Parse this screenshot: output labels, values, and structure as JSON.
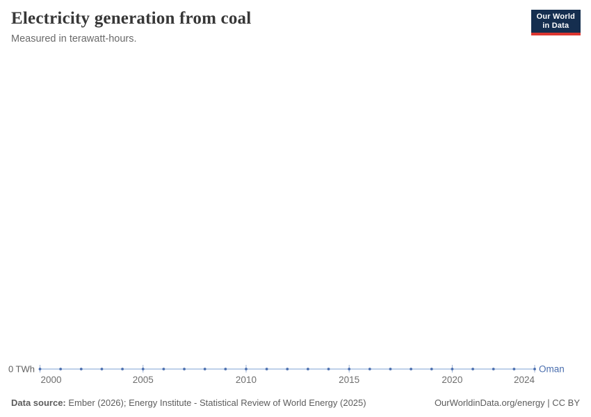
{
  "header": {
    "title": "Electricity generation from coal",
    "subtitle": "Measured in terawatt-hours."
  },
  "logo": {
    "line1": "Our World",
    "line2": "in Data",
    "bg_color": "#152e4f",
    "accent_color": "#dc3630"
  },
  "chart_data": {
    "type": "line",
    "title": "Electricity generation from coal",
    "subtitle": "Measured in terawatt-hours.",
    "entity": "Oman",
    "unit": "TWh",
    "x": [
      2000,
      2001,
      2002,
      2003,
      2004,
      2005,
      2006,
      2007,
      2008,
      2009,
      2010,
      2011,
      2012,
      2013,
      2014,
      2015,
      2016,
      2017,
      2018,
      2019,
      2020,
      2021,
      2022,
      2023,
      2024
    ],
    "values": [
      0,
      0,
      0,
      0,
      0,
      0,
      0,
      0,
      0,
      0,
      0,
      0,
      0,
      0,
      0,
      0,
      0,
      0,
      0,
      0,
      0,
      0,
      0,
      0,
      0
    ],
    "x_ticks": [
      2000,
      2005,
      2010,
      2015,
      2020,
      2024
    ],
    "xlim": [
      2000,
      2024
    ],
    "ylim": [
      0,
      0
    ],
    "y_axis_label": "0 TWh",
    "grid": false,
    "legend_position": "end-of-line-label",
    "colors": {
      "series": "#4a6eae",
      "line": "#a8c0e2",
      "tick": "#9db1d3",
      "axis_text": "#6e6e6e",
      "y_label_text": "#5f5f5f"
    }
  },
  "footer": {
    "source_label": "Data source:",
    "source_text": "Ember (2026); Energy Institute - Statistical Review of World Energy (2025)",
    "right_text": "OurWorldinData.org/energy | CC BY"
  }
}
